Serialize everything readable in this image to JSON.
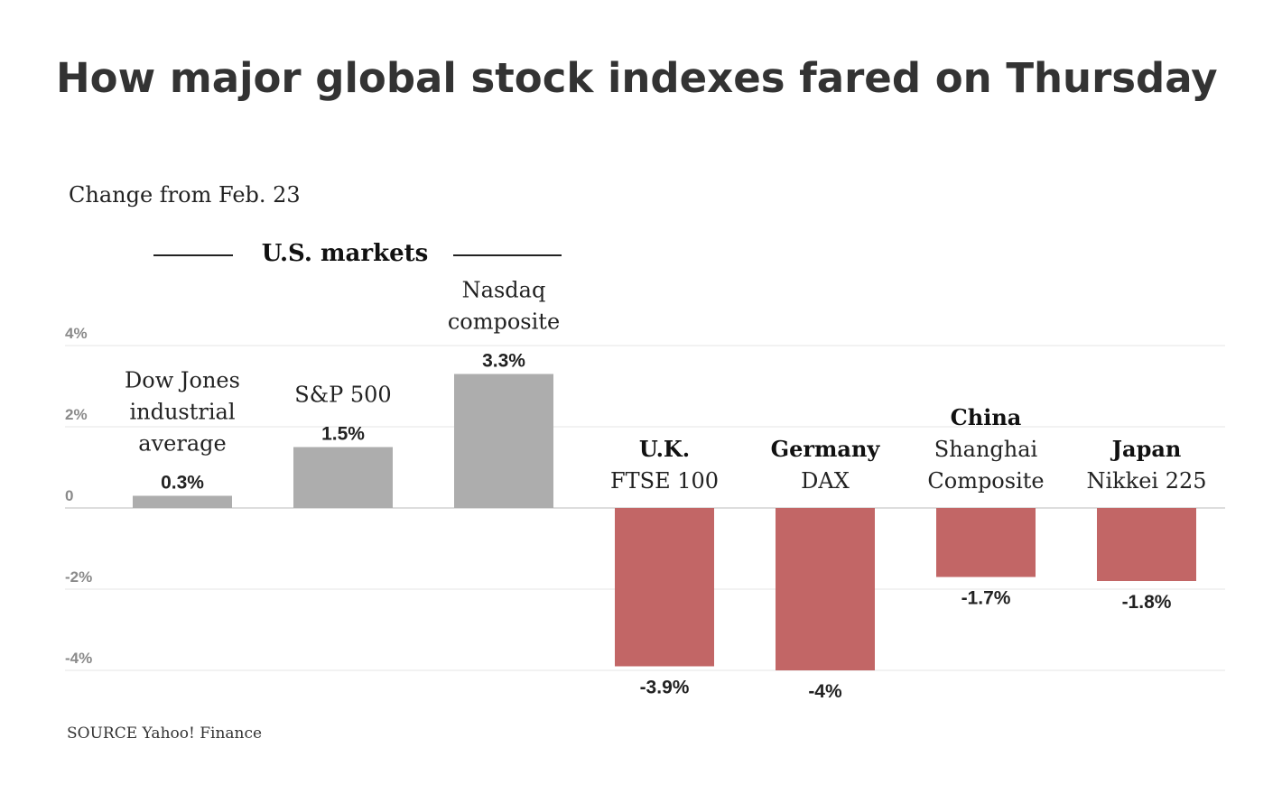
{
  "colors": {
    "positive": "#adadad",
    "negative": "#c26666",
    "grid": "#e6e6e6",
    "zero_line": "#d2d2d2",
    "group_rule": "#222222"
  },
  "chart_data": {
    "type": "bar",
    "title": "How major global stock indexes fared on Thursday",
    "subtitle": "Change from Feb. 23",
    "ylim": [
      -4,
      4
    ],
    "y_ticks": [
      {
        "value": 4,
        "label": "4%"
      },
      {
        "value": 2,
        "label": "2%"
      },
      {
        "value": 0,
        "label": "0"
      },
      {
        "value": -2,
        "label": "-2%"
      },
      {
        "value": -4,
        "label": "-4%"
      }
    ],
    "group_label": "U.S. markets",
    "categories": [
      {
        "region": "",
        "name_lines": [
          "Dow Jones",
          "industrial",
          "average"
        ],
        "value": 0.3,
        "label": "0.3%"
      },
      {
        "region": "",
        "name_lines": [
          "S&P 500"
        ],
        "value": 1.5,
        "label": "1.5%"
      },
      {
        "region": "",
        "name_lines": [
          "Nasdaq",
          "composite"
        ],
        "value": 3.3,
        "label": "3.3%"
      },
      {
        "region": "U.K.",
        "name_lines": [
          "FTSE 100"
        ],
        "value": -3.9,
        "label": "-3.9%"
      },
      {
        "region": "Germany",
        "name_lines": [
          "DAX"
        ],
        "value": -4.0,
        "label": "-4%"
      },
      {
        "region": "China",
        "name_lines": [
          "Shanghai",
          "Composite"
        ],
        "value": -1.7,
        "label": "-1.7%"
      },
      {
        "region": "Japan",
        "name_lines": [
          "Nikkei 225"
        ],
        "value": -1.8,
        "label": "-1.8%"
      }
    ],
    "source": "SOURCE Yahoo! Finance"
  }
}
